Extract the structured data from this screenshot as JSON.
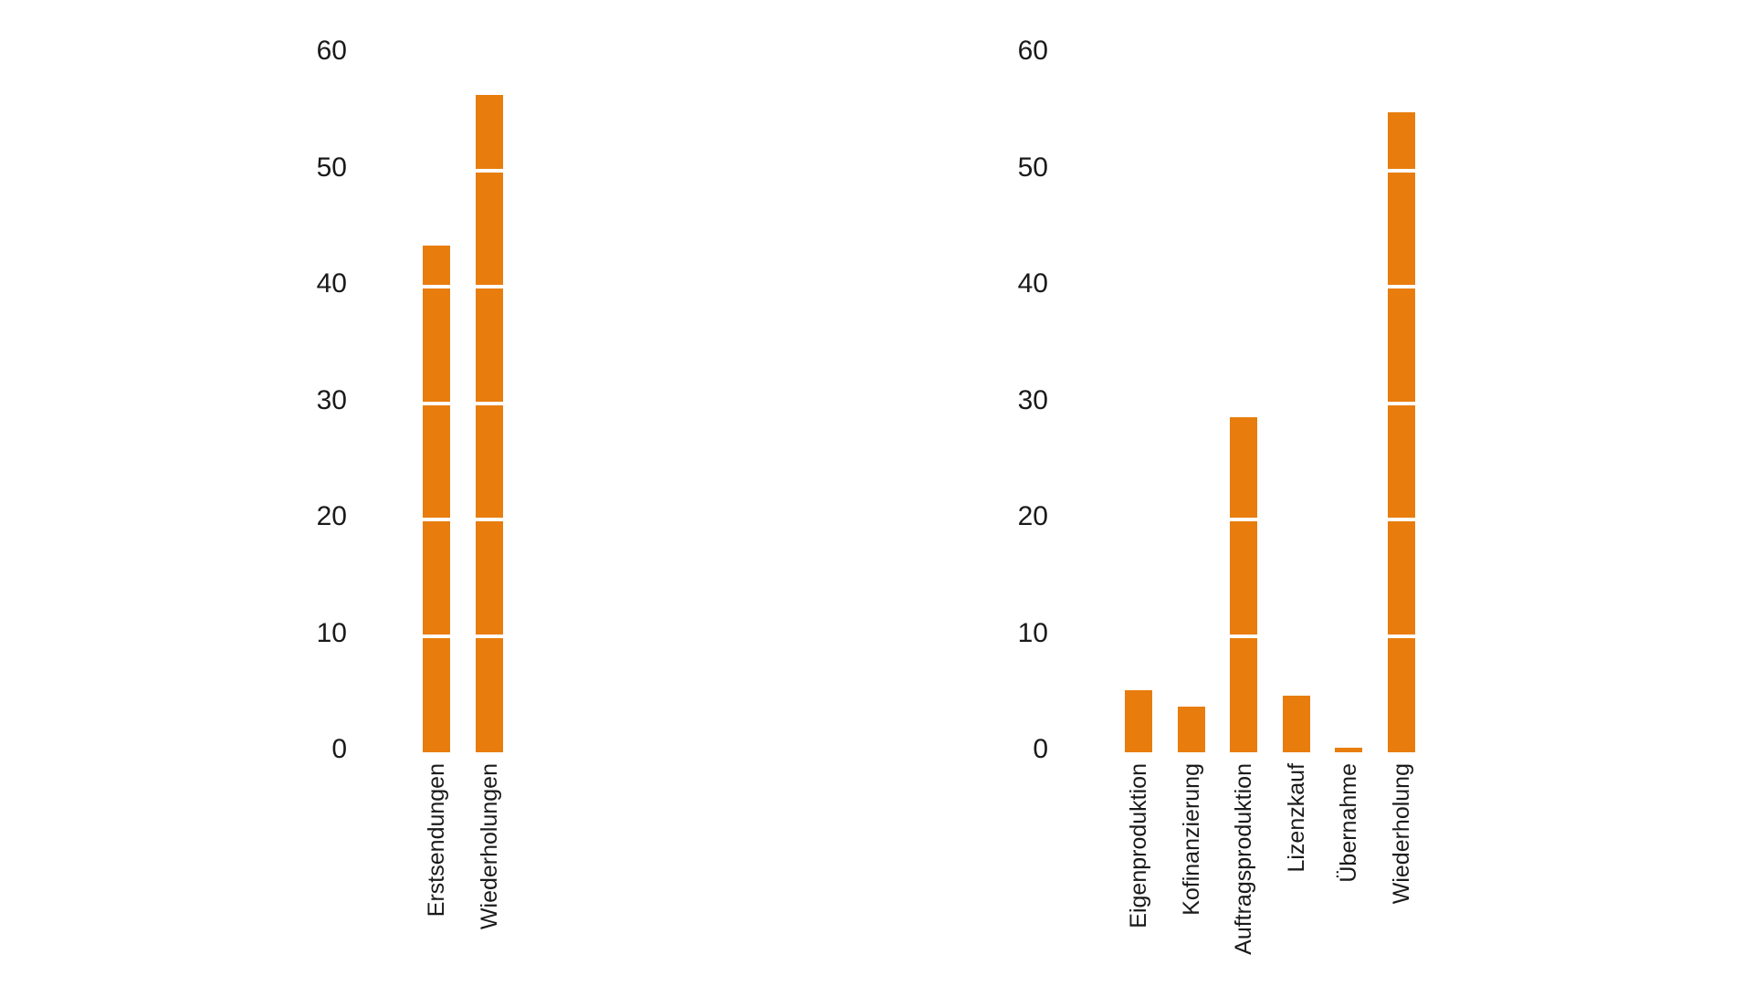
{
  "background": "#ffffff",
  "colors": {
    "bar": "#E87D0E",
    "text": "#1a1a1a",
    "gridline": "#ffffff"
  },
  "chart_data": [
    {
      "type": "bar",
      "title": "",
      "xlabel": "",
      "ylabel": "",
      "categories": [
        "Erstsendungen",
        "Wiederholungen"
      ],
      "values": [
        43.5,
        56.5
      ],
      "yticks": [
        0,
        10,
        20,
        30,
        40,
        50,
        60
      ],
      "ylim": [
        0,
        60
      ],
      "bar_color": "#E87D0E",
      "grid": "white horizontal lines overlaying bars at each 10-unit step",
      "category_label_rotation": 90,
      "legend": "none"
    },
    {
      "type": "bar",
      "title": "",
      "xlabel": "",
      "ylabel": "",
      "categories": [
        "Eigenproduktion",
        "Kofinanzierung",
        "Auftragsproduktion",
        "Lizenzkauf",
        "Übernahme",
        "Wiederholung"
      ],
      "values": [
        5.3,
        3.9,
        28.8,
        4.9,
        0.4,
        55
      ],
      "yticks": [
        0,
        10,
        20,
        30,
        40,
        50,
        60
      ],
      "ylim": [
        0,
        60
      ],
      "bar_color": "#E87D0E",
      "grid": "white horizontal lines overlaying bars at each 10-unit step",
      "category_label_rotation": 90,
      "legend": "none"
    }
  ]
}
